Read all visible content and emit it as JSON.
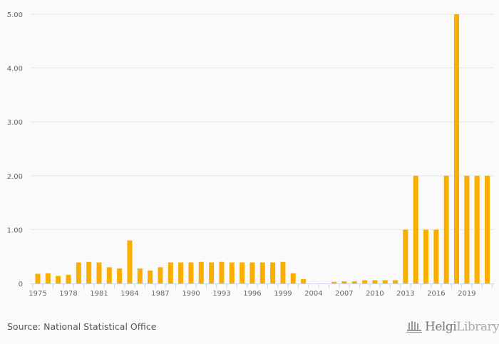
{
  "chart_data": {
    "type": "bar",
    "title": "",
    "xlabel": "",
    "ylabel": "",
    "ylim": [
      0,
      5
    ],
    "yticks": [
      "0",
      "1.00",
      "2.00",
      "3.00",
      "4.00",
      "5.00"
    ],
    "grid": true,
    "bar_color": "#f9ae00",
    "categories": [
      "1975",
      "1976",
      "1977",
      "1978",
      "1979",
      "1980",
      "1981",
      "1982",
      "1983",
      "1984",
      "1985",
      "1986",
      "1987",
      "1988",
      "1989",
      "1990",
      "1991",
      "1992",
      "1993",
      "1994",
      "1995",
      "1996",
      "1997",
      "1998",
      "1999",
      "2000",
      "2002",
      "2004",
      "2005",
      "2006",
      "2007",
      "2008",
      "2009",
      "2010",
      "2011",
      "2012",
      "2013",
      "2014",
      "2015",
      "2016",
      "2017",
      "2018",
      "2019",
      "2020",
      "2021"
    ],
    "values": [
      0.18,
      0.19,
      0.14,
      0.16,
      0.39,
      0.4,
      0.39,
      0.3,
      0.28,
      0.8,
      0.28,
      0.24,
      0.3,
      0.39,
      0.39,
      0.39,
      0.4,
      0.39,
      0.4,
      0.39,
      0.39,
      0.39,
      0.39,
      0.39,
      0.4,
      0.19,
      0.08,
      0,
      0,
      0.03,
      0.04,
      0.04,
      0.06,
      0.06,
      0.06,
      0.06,
      1.0,
      2.0,
      1.0,
      1.0,
      2.0,
      5.0,
      2.0,
      2.0,
      2.0
    ],
    "shown_xticks": [
      "1975",
      "1978",
      "1981",
      "1984",
      "1987",
      "1990",
      "1993",
      "1996",
      "1999",
      "2004",
      "2007",
      "2010",
      "2013",
      "2016",
      "2019"
    ]
  },
  "footer": {
    "source": "Source: National Statistical Office",
    "logo": "HelgiLibrary"
  }
}
